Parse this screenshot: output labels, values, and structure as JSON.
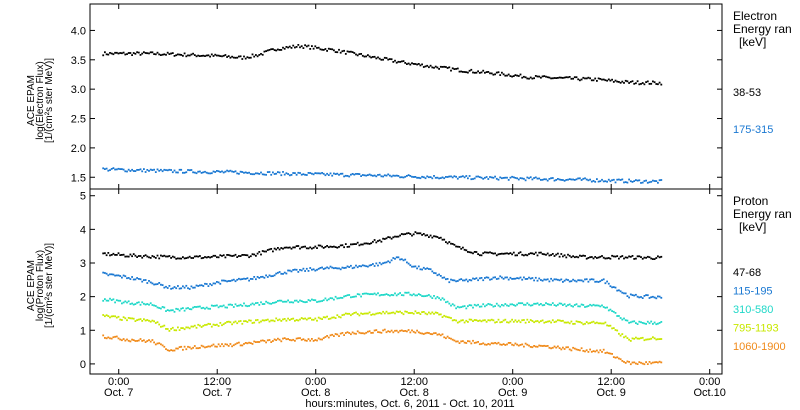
{
  "x_axis": {
    "title": "hours:minutes, Oct.  6, 2011 - Oct. 10, 2011",
    "ticks": [
      {
        "hours": 24,
        "time": "0:00",
        "date": "Oct. 7"
      },
      {
        "hours": 36,
        "time": "12:00",
        "date": "Oct. 7"
      },
      {
        "hours": 48,
        "time": "0:00",
        "date": "Oct. 8"
      },
      {
        "hours": 60,
        "time": "12:00",
        "date": "Oct. 8"
      },
      {
        "hours": 72,
        "time": "0:00",
        "date": "Oct. 9"
      },
      {
        "hours": 84,
        "time": "12:00",
        "date": "Oct. 9"
      },
      {
        "hours": 96,
        "time": "0:00",
        "date": "Oct.10"
      }
    ],
    "xlim_hours": [
      20.5,
      97.5
    ]
  },
  "chart_data": [
    {
      "type": "scatter",
      "ylabel_lines": [
        "ACE EPAM",
        "log(Electron Flux)",
        "[1/(cm²s ster MeV)]"
      ],
      "ylim": [
        1.3,
        4.45
      ],
      "y_ticks": [
        "1.5",
        "2.0",
        "2.5",
        "3.0",
        "3.5",
        "4.0"
      ],
      "legend_title_lines": [
        "Electron",
        "Energy ran",
        "[keV]"
      ],
      "grid": false,
      "series": [
        {
          "name": "38-53",
          "color": "#000000",
          "x_hours": [
            22,
            28,
            32,
            36,
            39,
            41,
            43,
            46,
            50,
            54,
            58,
            62,
            66,
            70,
            74,
            78,
            82,
            86,
            90
          ],
          "y": [
            3.62,
            3.62,
            3.6,
            3.58,
            3.55,
            3.6,
            3.7,
            3.75,
            3.68,
            3.58,
            3.48,
            3.4,
            3.33,
            3.28,
            3.22,
            3.2,
            3.18,
            3.13,
            3.12
          ]
        },
        {
          "name": "175-315",
          "color": "#1a78d2",
          "x_hours": [
            22,
            30,
            38,
            46,
            54,
            62,
            70,
            78,
            86,
            90
          ],
          "y": [
            1.65,
            1.62,
            1.6,
            1.57,
            1.55,
            1.52,
            1.5,
            1.48,
            1.45,
            1.44
          ]
        }
      ]
    },
    {
      "type": "scatter",
      "ylabel_lines": [
        "ACE EPAM",
        "log(Proton Flux)",
        "[1/(cm²s ster MeV)]"
      ],
      "ylim": [
        -0.3,
        5.2
      ],
      "y_ticks": [
        "0",
        "1",
        "2",
        "3",
        "4",
        "5"
      ],
      "legend_title_lines": [
        "Proton",
        "Energy ran",
        "[keV]"
      ],
      "grid": false,
      "series": [
        {
          "name": "47-68",
          "color": "#000000",
          "x_hours": [
            22,
            25,
            30,
            35,
            40,
            44,
            48,
            52,
            56,
            58,
            60,
            63,
            65,
            68,
            72,
            76,
            80,
            85,
            90
          ],
          "y": [
            3.3,
            3.25,
            3.2,
            3.2,
            3.25,
            3.5,
            3.5,
            3.55,
            3.7,
            3.85,
            3.9,
            3.8,
            3.5,
            3.3,
            3.3,
            3.3,
            3.2,
            3.2,
            3.18
          ]
        },
        {
          "name": "115-195",
          "color": "#1a78d2",
          "x_hours": [
            22,
            25,
            28,
            30,
            33,
            36,
            40,
            44,
            48,
            52,
            56,
            58,
            60,
            62,
            64,
            66,
            70,
            74,
            78,
            83,
            86,
            90
          ],
          "y": [
            2.7,
            2.6,
            2.45,
            2.3,
            2.3,
            2.45,
            2.55,
            2.75,
            2.85,
            2.9,
            3.0,
            3.2,
            2.9,
            2.8,
            2.5,
            2.5,
            2.6,
            2.55,
            2.5,
            2.5,
            2.05,
            2.0
          ]
        },
        {
          "name": "310-580",
          "color": "#20d8c8",
          "x_hours": [
            22,
            25,
            28,
            30,
            34,
            38,
            44,
            48,
            52,
            56,
            60,
            63,
            65,
            68,
            72,
            76,
            80,
            83,
            86,
            90
          ],
          "y": [
            1.95,
            1.85,
            1.8,
            1.6,
            1.7,
            1.75,
            1.9,
            1.9,
            2.05,
            2.1,
            2.1,
            2.0,
            1.7,
            1.75,
            1.8,
            1.8,
            1.75,
            1.75,
            1.25,
            1.25
          ]
        },
        {
          "name": "795-1193",
          "color": "#c8e800",
          "x_hours": [
            22,
            25,
            28,
            30,
            34,
            38,
            44,
            48,
            52,
            56,
            60,
            63,
            65,
            68,
            72,
            76,
            80,
            83,
            86,
            90
          ],
          "y": [
            1.45,
            1.35,
            1.3,
            1.05,
            1.15,
            1.25,
            1.35,
            1.35,
            1.5,
            1.55,
            1.55,
            1.5,
            1.3,
            1.3,
            1.3,
            1.3,
            1.25,
            1.25,
            0.75,
            0.8
          ]
        },
        {
          "name": "1060-1900",
          "color": "#f08a1a",
          "x_hours": [
            22,
            25,
            28,
            30,
            34,
            38,
            44,
            48,
            52,
            56,
            60,
            63,
            65,
            68,
            72,
            76,
            80,
            83,
            86,
            90
          ],
          "y": [
            0.85,
            0.75,
            0.7,
            0.45,
            0.55,
            0.6,
            0.75,
            0.75,
            0.95,
            1.0,
            1.0,
            0.9,
            0.7,
            0.65,
            0.6,
            0.55,
            0.45,
            0.4,
            0.05,
            0.05
          ]
        }
      ]
    }
  ]
}
